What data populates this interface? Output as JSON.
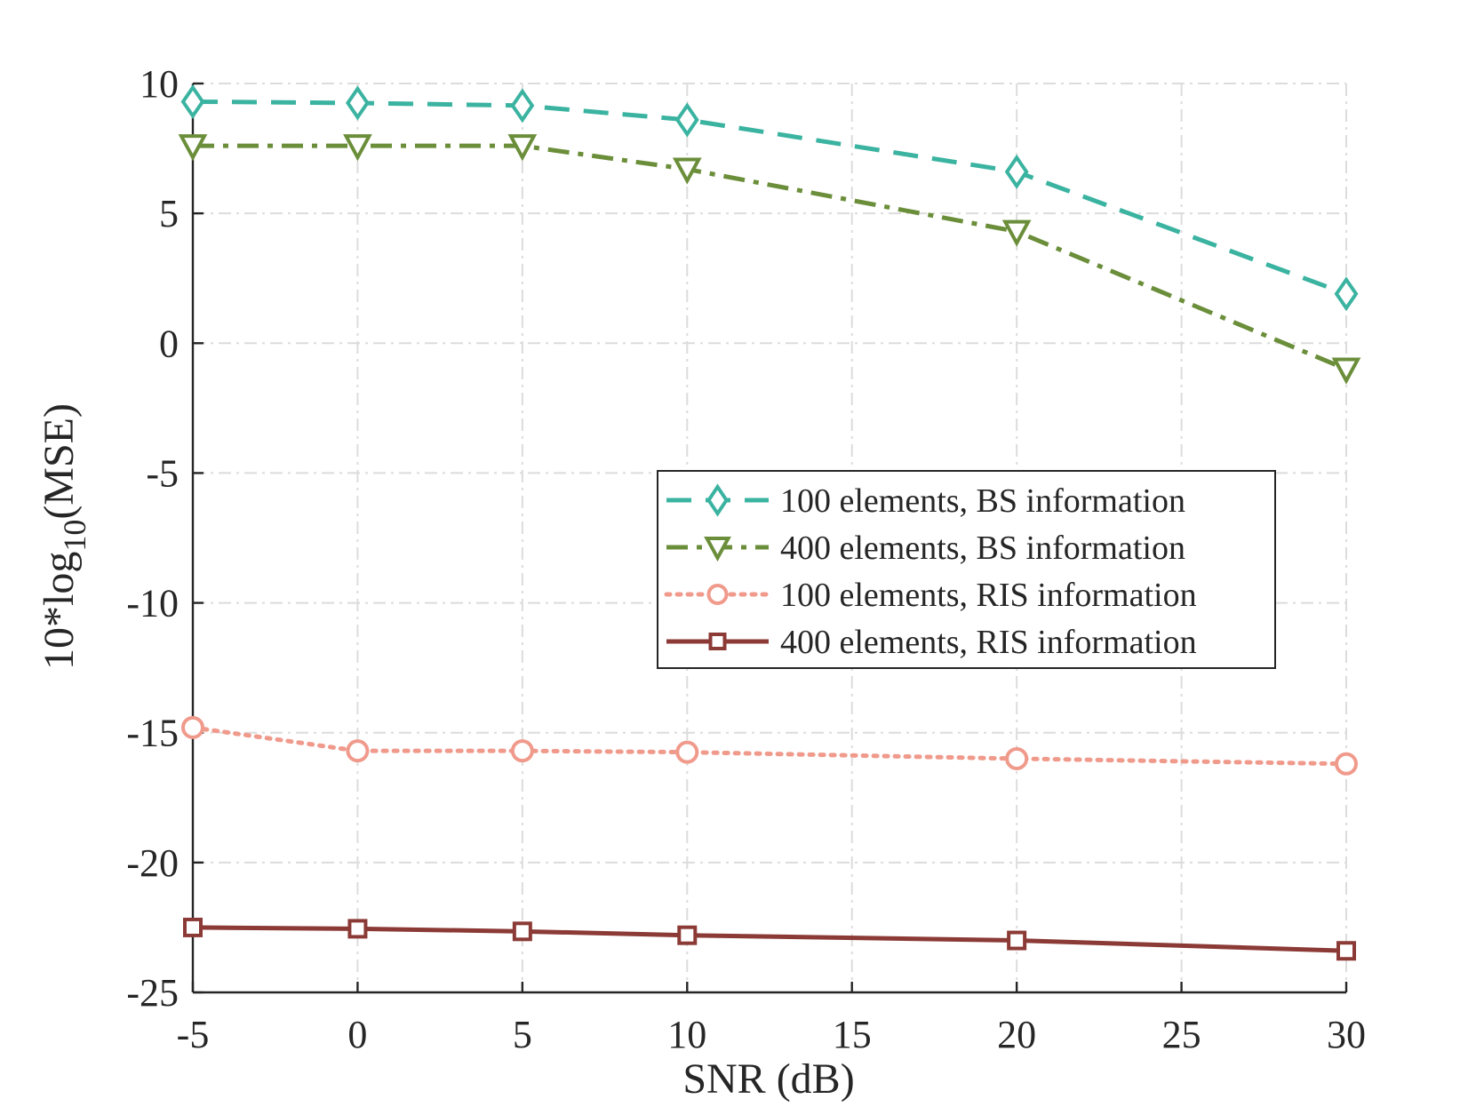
{
  "chart_data": {
    "type": "line",
    "title": "",
    "xlabel": "SNR (dB)",
    "ylabel_main": "10*log",
    "ylabel_sub": "10",
    "ylabel_tail": "(MSE)",
    "xlim": [
      -5,
      30
    ],
    "ylim": [
      -25,
      10
    ],
    "xticks": [
      -5,
      0,
      5,
      10,
      15,
      20,
      25,
      30
    ],
    "xtick_labels": [
      "-5",
      "0",
      "5",
      "10",
      "15",
      "20",
      "25",
      "30"
    ],
    "yticks": [
      -25,
      -20,
      -15,
      -10,
      -5,
      0,
      5,
      10
    ],
    "ytick_labels": [
      "-25",
      "-20",
      "-15",
      "-10",
      "-5",
      "0",
      "5",
      "10"
    ],
    "grid": true,
    "legend_position": "center-right",
    "x": [
      -5,
      0,
      5,
      10,
      20,
      30
    ],
    "series": [
      {
        "name": "100 elements, BS information",
        "values": [
          9.3,
          9.25,
          9.15,
          8.6,
          6.6,
          1.9
        ],
        "color": "#3bb3a1",
        "line_style": "dashed",
        "marker": "diamond"
      },
      {
        "name": "400 elements, BS information",
        "values": [
          7.6,
          7.6,
          7.6,
          6.7,
          4.3,
          -1.0
        ],
        "color": "#6b8e3a",
        "line_style": "dashdot",
        "marker": "triangle-down"
      },
      {
        "name": "100 elements, RIS information",
        "values": [
          -14.8,
          -15.7,
          -15.7,
          -15.75,
          -16.0,
          -16.2
        ],
        "color": "#f09a8c",
        "line_style": "dotted",
        "marker": "circle"
      },
      {
        "name": "400 elements, RIS information",
        "values": [
          -22.5,
          -22.55,
          -22.65,
          -22.8,
          -23.0,
          -23.4
        ],
        "color": "#8b3a36",
        "line_style": "solid",
        "marker": "square"
      }
    ]
  }
}
